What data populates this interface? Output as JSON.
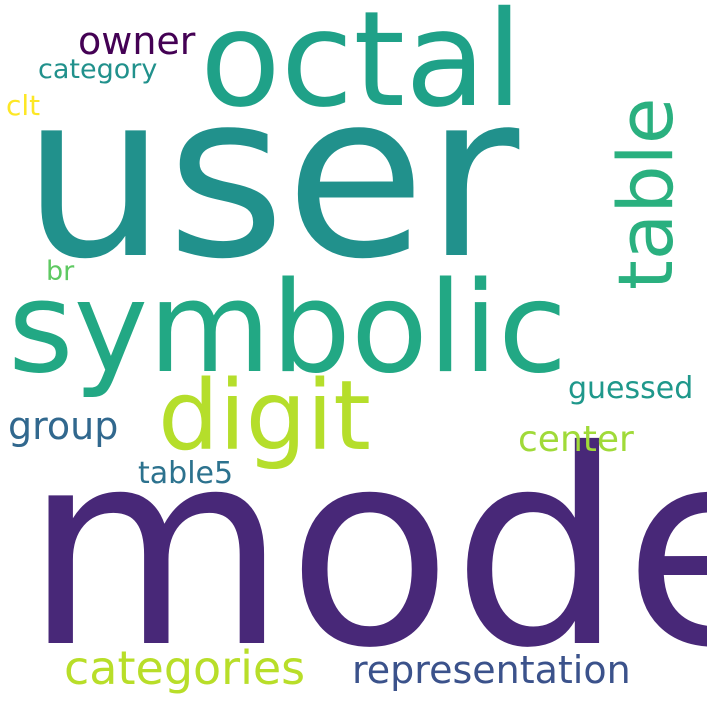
{
  "words": [
    {
      "text": "user",
      "color": "#21918c"
    },
    {
      "text": "mode",
      "color": "#482878"
    },
    {
      "text": "symbolic",
      "color": "#22a884"
    },
    {
      "text": "octal",
      "color": "#1fa188"
    },
    {
      "text": "digit",
      "color": "#b5de2b"
    },
    {
      "text": "table",
      "color": "#2ab07f"
    },
    {
      "text": "categories",
      "color": "#b8de29"
    },
    {
      "text": "representation",
      "color": "#3b528b"
    },
    {
      "text": "owner",
      "color": "#440154"
    },
    {
      "text": "category",
      "color": "#21918c"
    },
    {
      "text": "group",
      "color": "#31688e"
    },
    {
      "text": "center",
      "color": "#a0da39"
    },
    {
      "text": "guessed",
      "color": "#1f988b"
    },
    {
      "text": "table5",
      "color": "#2c728e"
    },
    {
      "text": "clt",
      "color": "#fde725"
    },
    {
      "text": "br",
      "color": "#5ec962"
    }
  ]
}
